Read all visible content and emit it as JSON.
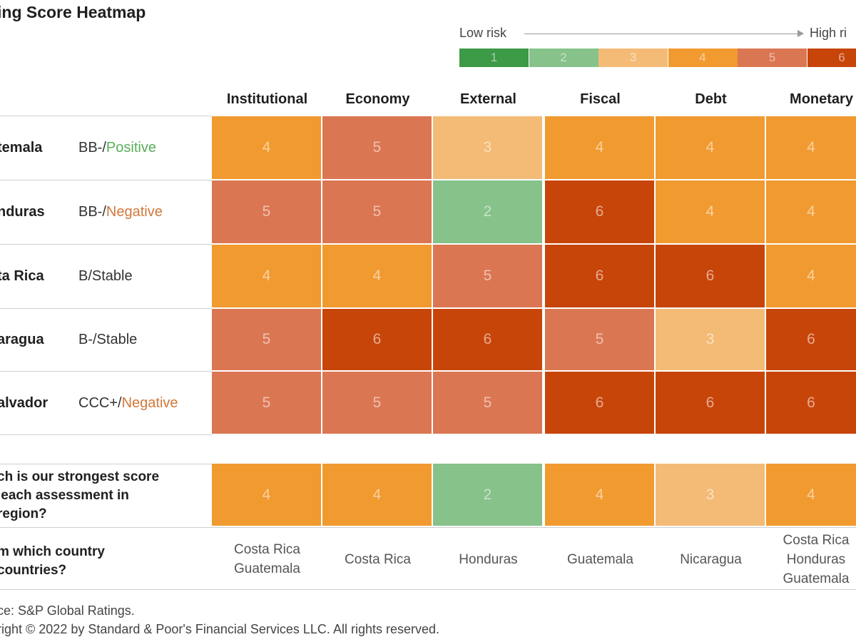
{
  "title": "ing Score Heatmap",
  "legend": {
    "low_label": "Low risk",
    "high_label": "High ri",
    "scores": [
      "1",
      "2",
      "3",
      "4",
      "5",
      "6"
    ]
  },
  "colors": {
    "1": "#3d9a46",
    "2": "#86c28a",
    "3": "#f4bb76",
    "4": "#f19a30",
    "5": "#db7652",
    "6": "#c74509"
  },
  "columns": [
    "Institutional",
    "Economy",
    "External",
    "Fiscal",
    "Debt",
    "Monetary"
  ],
  "rows": [
    {
      "name": "temala",
      "rating_prefix": "BB-/",
      "rating_outlook": "Positive",
      "outlook_class": "pos",
      "scores": [
        4,
        5,
        3,
        4,
        4,
        4
      ]
    },
    {
      "name": "nduras",
      "rating_prefix": "BB-/",
      "rating_outlook": "Negative",
      "outlook_class": "neg",
      "scores": [
        5,
        5,
        2,
        6,
        4,
        4
      ]
    },
    {
      "name": "ta Rica",
      "rating_prefix": "B/Stable",
      "rating_outlook": "",
      "outlook_class": "",
      "scores": [
        4,
        4,
        5,
        6,
        6,
        4
      ]
    },
    {
      "name": "aragua",
      "rating_prefix": "B-/Stable",
      "rating_outlook": "",
      "outlook_class": "",
      "scores": [
        5,
        6,
        6,
        5,
        3,
        6
      ]
    },
    {
      "name": "alvador",
      "rating_prefix": "CCC+/",
      "rating_outlook": "Negative",
      "outlook_class": "neg",
      "scores": [
        5,
        5,
        5,
        6,
        6,
        6
      ]
    }
  ],
  "strongest": {
    "question": "ch is our strongest score\n each assessment in\nregion?",
    "scores": [
      4,
      4,
      2,
      4,
      3,
      4
    ]
  },
  "from_country": {
    "question": "m which country\ncountries?",
    "values": [
      "Costa Rica\nGuatemala",
      "Costa Rica",
      "Honduras",
      "Guatemala",
      "Nicaragua",
      "Costa Rica\nHonduras\nGuatemala"
    ]
  },
  "footer": {
    "source": "ce: S&P Global Ratings.",
    "copyright": "right © 2022  by Standard & Poor's Financial Services LLC. All rights reserved."
  },
  "chart_data": {
    "type": "heatmap",
    "title": "ing Score Heatmap",
    "x_categories": [
      "Institutional",
      "Economy",
      "External",
      "Fiscal",
      "Debt",
      "Monetary"
    ],
    "y_categories": [
      "temala",
      "nduras",
      "ta Rica",
      "aragua",
      "alvador"
    ],
    "values": [
      [
        4,
        5,
        3,
        4,
        4,
        4
      ],
      [
        5,
        5,
        2,
        6,
        4,
        4
      ],
      [
        4,
        4,
        5,
        6,
        6,
        4
      ],
      [
        5,
        6,
        6,
        5,
        3,
        6
      ],
      [
        5,
        5,
        5,
        6,
        6,
        6
      ]
    ],
    "scale": {
      "min": 1,
      "max": 6,
      "low_label": "Low risk",
      "high_label": "High ri"
    }
  }
}
